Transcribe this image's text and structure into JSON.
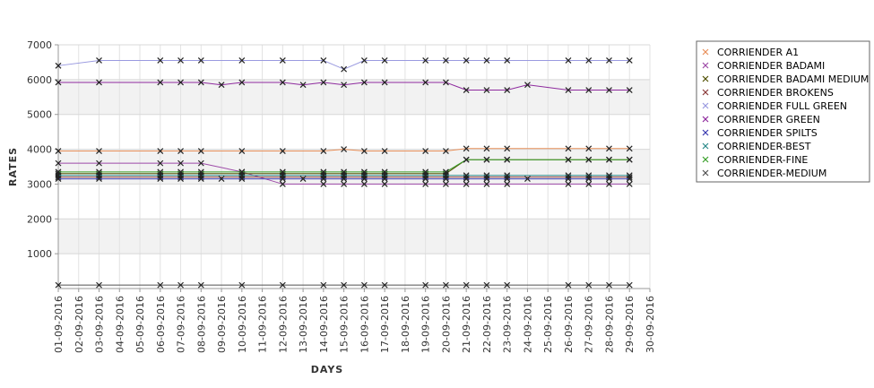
{
  "chart_data": {
    "type": "line",
    "xlabel": "DAYS",
    "ylabel": "RATES",
    "ylim": [
      0,
      7000
    ],
    "yticks": [
      1000,
      2000,
      3000,
      4000,
      5000,
      6000,
      7000
    ],
    "ytick_labels": [
      "1000",
      "2000",
      "3000",
      "4000",
      "5000",
      "6000",
      "7000"
    ],
    "categories": [
      "01-09-2016",
      "02-09-2016",
      "03-09-2016",
      "04-09-2016",
      "05-09-2016",
      "06-09-2016",
      "07-09-2016",
      "08-09-2016",
      "09-09-2016",
      "10-09-2016",
      "11-09-2016",
      "12-09-2016",
      "13-09-2016",
      "14-09-2016",
      "15-09-2016",
      "16-09-2016",
      "17-09-2016",
      "18-09-2016",
      "19-09-2016",
      "20-09-2016",
      "21-09-2016",
      "22-09-2016",
      "23-09-2016",
      "24-09-2016",
      "25-09-2016",
      "26-09-2016",
      "27-09-2016",
      "28-09-2016",
      "29-09-2016",
      "30-09-2016"
    ],
    "grid": true,
    "legend_position": "right",
    "series": [
      {
        "name": "CORRIENDER A1",
        "color": "#e8905a",
        "points": [
          [
            0,
            3950
          ],
          [
            2,
            3950
          ],
          [
            5,
            3950
          ],
          [
            6,
            3950
          ],
          [
            7,
            3950
          ],
          [
            9,
            3950
          ],
          [
            11,
            3950
          ],
          [
            13,
            3950
          ],
          [
            14,
            4000
          ],
          [
            15,
            3950
          ],
          [
            16,
            3950
          ],
          [
            18,
            3950
          ],
          [
            19,
            3950
          ],
          [
            20,
            4020
          ],
          [
            21,
            4020
          ],
          [
            22,
            4020
          ],
          [
            25,
            4020
          ],
          [
            26,
            4020
          ],
          [
            27,
            4020
          ],
          [
            28,
            4020
          ]
        ]
      },
      {
        "name": "CORRIENDER BADAMI",
        "color": "#9d4aa8",
        "points": [
          [
            0,
            3600
          ],
          [
            2,
            3600
          ],
          [
            5,
            3600
          ],
          [
            6,
            3600
          ],
          [
            7,
            3600
          ],
          [
            9,
            3350
          ],
          [
            11,
            3000
          ],
          [
            13,
            3000
          ],
          [
            14,
            3000
          ],
          [
            15,
            3000
          ],
          [
            16,
            3000
          ],
          [
            18,
            3000
          ],
          [
            19,
            3000
          ],
          [
            20,
            3000
          ],
          [
            21,
            3000
          ],
          [
            22,
            3000
          ],
          [
            25,
            3000
          ],
          [
            26,
            3000
          ],
          [
            27,
            3000
          ],
          [
            28,
            3000
          ]
        ]
      },
      {
        "name": "CORRIENDER BADAMI MEDIUM",
        "color": "#505000",
        "points": [
          [
            0,
            3300
          ],
          [
            2,
            3300
          ],
          [
            5,
            3300
          ],
          [
            6,
            3300
          ],
          [
            7,
            3300
          ],
          [
            9,
            3300
          ],
          [
            11,
            3300
          ],
          [
            13,
            3300
          ],
          [
            14,
            3300
          ],
          [
            15,
            3300
          ],
          [
            16,
            3300
          ],
          [
            18,
            3300
          ],
          [
            19,
            3300
          ],
          [
            20,
            3700
          ],
          [
            21,
            3700
          ],
          [
            22,
            3700
          ],
          [
            25,
            3700
          ],
          [
            26,
            3700
          ],
          [
            27,
            3700
          ],
          [
            28,
            3700
          ]
        ]
      },
      {
        "name": "CORRIENDER BROKENS",
        "color": "#8b3a3a",
        "points": [
          [
            0,
            3200
          ],
          [
            2,
            3200
          ],
          [
            5,
            3200
          ],
          [
            6,
            3200
          ],
          [
            7,
            3200
          ],
          [
            9,
            3200
          ],
          [
            11,
            3200
          ],
          [
            13,
            3200
          ],
          [
            14,
            3200
          ],
          [
            15,
            3200
          ],
          [
            16,
            3200
          ],
          [
            18,
            3200
          ],
          [
            19,
            3200
          ],
          [
            20,
            3200
          ],
          [
            21,
            3200
          ],
          [
            22,
            3200
          ],
          [
            25,
            3200
          ],
          [
            26,
            3200
          ],
          [
            27,
            3200
          ],
          [
            28,
            3200
          ]
        ]
      },
      {
        "name": "CORRIENDER FULL GREEN",
        "color": "#9a9ae0",
        "points": [
          [
            0,
            6400
          ],
          [
            2,
            6550
          ],
          [
            5,
            6550
          ],
          [
            6,
            6550
          ],
          [
            7,
            6550
          ],
          [
            9,
            6550
          ],
          [
            11,
            6550
          ],
          [
            13,
            6550
          ],
          [
            14,
            6300
          ],
          [
            15,
            6550
          ],
          [
            16,
            6550
          ],
          [
            18,
            6550
          ],
          [
            19,
            6550
          ],
          [
            20,
            6550
          ],
          [
            21,
            6550
          ],
          [
            22,
            6550
          ],
          [
            25,
            6550
          ],
          [
            26,
            6550
          ],
          [
            27,
            6550
          ],
          [
            28,
            6550
          ]
        ]
      },
      {
        "name": "CORRIENDER GREEN",
        "color": "#8e2a9e",
        "points": [
          [
            0,
            5920
          ],
          [
            2,
            5920
          ],
          [
            5,
            5920
          ],
          [
            6,
            5920
          ],
          [
            7,
            5920
          ],
          [
            8,
            5850
          ],
          [
            9,
            5920
          ],
          [
            11,
            5920
          ],
          [
            12,
            5850
          ],
          [
            13,
            5920
          ],
          [
            14,
            5850
          ],
          [
            15,
            5920
          ],
          [
            16,
            5920
          ],
          [
            18,
            5920
          ],
          [
            19,
            5920
          ],
          [
            20,
            5700
          ],
          [
            21,
            5700
          ],
          [
            22,
            5700
          ],
          [
            23,
            5850
          ],
          [
            25,
            5700
          ],
          [
            26,
            5700
          ],
          [
            27,
            5700
          ],
          [
            28,
            5700
          ]
        ]
      },
      {
        "name": "CORRIENDER SPILTS",
        "color": "#3a3ab0",
        "points": [
          [
            0,
            3150
          ],
          [
            2,
            3150
          ],
          [
            5,
            3150
          ],
          [
            6,
            3150
          ],
          [
            7,
            3150
          ],
          [
            8,
            3150
          ],
          [
            9,
            3150
          ],
          [
            11,
            3150
          ],
          [
            12,
            3150
          ],
          [
            13,
            3150
          ],
          [
            14,
            3150
          ],
          [
            15,
            3150
          ],
          [
            16,
            3150
          ],
          [
            18,
            3150
          ],
          [
            19,
            3150
          ],
          [
            20,
            3150
          ],
          [
            21,
            3150
          ],
          [
            22,
            3150
          ],
          [
            23,
            3150
          ],
          [
            25,
            3150
          ],
          [
            26,
            3150
          ],
          [
            27,
            3150
          ],
          [
            28,
            3150
          ]
        ]
      },
      {
        "name": "CORRIENDER-BEST",
        "color": "#2a8a8a",
        "points": [
          [
            0,
            3250
          ],
          [
            2,
            3250
          ],
          [
            5,
            3250
          ],
          [
            6,
            3250
          ],
          [
            7,
            3250
          ],
          [
            9,
            3250
          ],
          [
            11,
            3250
          ],
          [
            13,
            3250
          ],
          [
            14,
            3250
          ],
          [
            15,
            3250
          ],
          [
            16,
            3250
          ],
          [
            18,
            3250
          ],
          [
            19,
            3250
          ],
          [
            20,
            3250
          ],
          [
            21,
            3250
          ],
          [
            22,
            3250
          ],
          [
            25,
            3250
          ],
          [
            26,
            3250
          ],
          [
            27,
            3250
          ],
          [
            28,
            3250
          ]
        ]
      },
      {
        "name": "CORRIENDER-FINE",
        "color": "#3aa02a",
        "points": [
          [
            0,
            3350
          ],
          [
            2,
            3350
          ],
          [
            5,
            3350
          ],
          [
            6,
            3350
          ],
          [
            7,
            3350
          ],
          [
            9,
            3350
          ],
          [
            11,
            3350
          ],
          [
            13,
            3350
          ],
          [
            14,
            3350
          ],
          [
            15,
            3350
          ],
          [
            16,
            3350
          ],
          [
            18,
            3350
          ],
          [
            19,
            3350
          ],
          [
            20,
            3700
          ],
          [
            21,
            3700
          ],
          [
            22,
            3700
          ],
          [
            25,
            3700
          ],
          [
            26,
            3700
          ],
          [
            27,
            3700
          ],
          [
            28,
            3700
          ]
        ]
      },
      {
        "name": "CORRIENDER-MEDIUM",
        "color": "#505050",
        "points": [
          [
            0,
            100
          ],
          [
            2,
            100
          ],
          [
            5,
            100
          ],
          [
            6,
            100
          ],
          [
            7,
            100
          ],
          [
            9,
            100
          ],
          [
            11,
            100
          ],
          [
            13,
            100
          ],
          [
            14,
            100
          ],
          [
            15,
            100
          ],
          [
            16,
            100
          ],
          [
            18,
            100
          ],
          [
            19,
            100
          ],
          [
            20,
            100
          ],
          [
            21,
            100
          ],
          [
            22,
            100
          ],
          [
            25,
            100
          ],
          [
            26,
            100
          ],
          [
            27,
            100
          ],
          [
            28,
            100
          ]
        ]
      }
    ]
  }
}
